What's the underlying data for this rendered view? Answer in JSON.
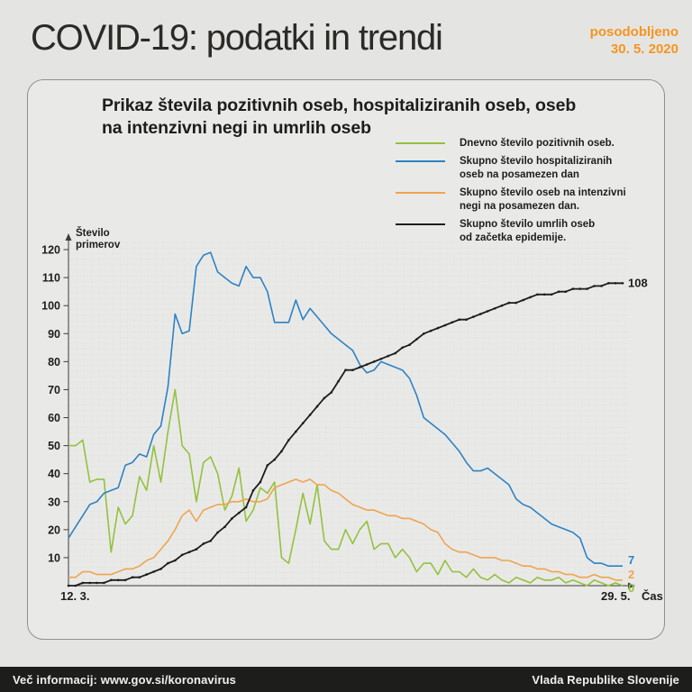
{
  "header": {
    "title": "COVID-19: podatki in trendi",
    "updated_label": "posodobljeno",
    "updated_date": "30. 5. 2020"
  },
  "card": {
    "title": "Prikaz števila pozitivnih oseb, hospitaliziranih oseb, oseb\nna intenzivni negi in umrlih oseb"
  },
  "legend": {
    "items": [
      {
        "id": "positive",
        "label": "Dnevno število pozitivnih oseb.",
        "color": "#94c13e"
      },
      {
        "id": "hospitalized",
        "label": "Skupno število hospitaliziranih\noseb na posamezen dan",
        "color": "#2e82c4"
      },
      {
        "id": "icu",
        "label": "Skupno število oseb na intenzivni\nnegi na posamezen dan.",
        "color": "#f0a44e"
      },
      {
        "id": "deaths",
        "label": "Skupno število umrlih oseb\nod začetka epidemije.",
        "color": "#1d1d1b"
      }
    ]
  },
  "chart_data": {
    "type": "line",
    "title": "Prikaz števila pozitivnih oseb, hospitaliziranih oseb, oseb na intenzivni negi in umrlih oseb",
    "ylabel": "Število\nprimerov",
    "xlabel": "Čas",
    "grid": true,
    "legend_position": "top-right",
    "x_axis": {
      "start_label": "12. 3.",
      "end_label": "29. 5.",
      "unit": "day",
      "num_points": 79
    },
    "y_ticks": [
      10,
      20,
      30,
      40,
      50,
      60,
      70,
      80,
      90,
      100,
      110,
      120
    ],
    "ylim": [
      0,
      124
    ],
    "series": [
      {
        "id": "positive",
        "name": "Dnevno število pozitivnih oseb.",
        "color": "#94c13e",
        "markers": false,
        "end_label": "0",
        "values": [
          50,
          50,
          52,
          37,
          38,
          38,
          12,
          28,
          22,
          25,
          39,
          34,
          50,
          37,
          55,
          70,
          50,
          47,
          30,
          44,
          46,
          40,
          27,
          32,
          42,
          23,
          27,
          35,
          33,
          37,
          10,
          8,
          20,
          33,
          22,
          36,
          16,
          13,
          13,
          20,
          15,
          20,
          23,
          13,
          15,
          15,
          10,
          13,
          10,
          5,
          8,
          8,
          4,
          9,
          5,
          5,
          3,
          6,
          3,
          2,
          4,
          2,
          1,
          3,
          2,
          1,
          3,
          2,
          2,
          3,
          1,
          2,
          1,
          0,
          2,
          1,
          0,
          1,
          0
        ]
      },
      {
        "id": "hospitalized",
        "name": "Skupno število hospitaliziranih oseb na posamezen dan",
        "color": "#2e82c4",
        "markers": false,
        "end_label": "7",
        "values": [
          17,
          21,
          25,
          29,
          30,
          33,
          34,
          35,
          43,
          44,
          47,
          46,
          54,
          57,
          71,
          97,
          90,
          91,
          114,
          118,
          119,
          112,
          110,
          108,
          107,
          114,
          110,
          110,
          105,
          94,
          94,
          94,
          102,
          95,
          99,
          96,
          93,
          90,
          88,
          86,
          84,
          79,
          76,
          77,
          80,
          79,
          78,
          77,
          74,
          68,
          60,
          58,
          56,
          54,
          51,
          48,
          44,
          41,
          41,
          42,
          40,
          38,
          36,
          31,
          29,
          28,
          26,
          24,
          22,
          21,
          20,
          19,
          17,
          10,
          8,
          8,
          7,
          7,
          7
        ]
      },
      {
        "id": "icu",
        "name": "Skupno število oseb na intenzivni negi na posamezen dan.",
        "color": "#f0a44e",
        "markers": false,
        "end_label": "2",
        "values": [
          3,
          3,
          5,
          5,
          4,
          4,
          4,
          5,
          6,
          6,
          7,
          9,
          10,
          13,
          16,
          20,
          25,
          27,
          23,
          27,
          28,
          29,
          29,
          30,
          30,
          31,
          30,
          30,
          31,
          35,
          36,
          37,
          38,
          37,
          38,
          36,
          36,
          34,
          33,
          31,
          29,
          28,
          27,
          27,
          26,
          25,
          25,
          24,
          24,
          23,
          22,
          20,
          19,
          15,
          13,
          12,
          12,
          11,
          10,
          10,
          10,
          9,
          9,
          8,
          7,
          7,
          6,
          6,
          5,
          5,
          4,
          4,
          3,
          3,
          4,
          3,
          3,
          2,
          2
        ]
      },
      {
        "id": "deaths",
        "name": "Skupno število umrlih oseb od začetka epidemije.",
        "color": "#1d1d1b",
        "markers": true,
        "end_label": "108",
        "values": [
          0,
          0,
          1,
          1,
          1,
          1,
          2,
          2,
          2,
          3,
          3,
          4,
          5,
          6,
          8,
          9,
          11,
          12,
          13,
          15,
          16,
          19,
          21,
          24,
          26,
          28,
          34,
          37,
          43,
          45,
          48,
          52,
          55,
          58,
          61,
          64,
          67,
          69,
          73,
          77,
          77,
          78,
          79,
          80,
          81,
          82,
          83,
          85,
          86,
          88,
          90,
          91,
          92,
          93,
          94,
          95,
          95,
          96,
          97,
          98,
          99,
          100,
          101,
          101,
          102,
          103,
          104,
          104,
          104,
          105,
          105,
          106,
          106,
          106,
          107,
          107,
          108,
          108,
          108
        ]
      }
    ]
  },
  "footer": {
    "left": "Več informacij: www.gov.si/koronavirus",
    "right": "Vlada Republike Slovenije"
  }
}
